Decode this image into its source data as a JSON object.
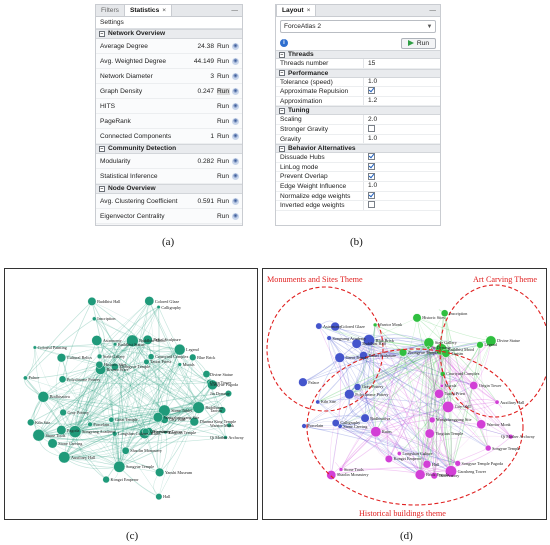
{
  "statistics_panel": {
    "tabs": [
      "Filters",
      "Statistics"
    ],
    "tab_close": "×",
    "minimize": "—",
    "subheader": "Settings",
    "sections": [
      {
        "title": "Network Overview",
        "rows": [
          {
            "label": "Average Degree",
            "value": "24.38",
            "run": "Run"
          },
          {
            "label": "Avg. Weighted Degree",
            "value": "44.149",
            "run": "Run"
          },
          {
            "label": "Network Diameter",
            "value": "3",
            "run": "Run"
          },
          {
            "label": "Graph Density",
            "value": "0.247",
            "run": "Run"
          },
          {
            "label": "HITS",
            "value": "",
            "run": "Run"
          },
          {
            "label": "PageRank",
            "value": "",
            "run": "Run"
          },
          {
            "label": "Connected Components",
            "value": "1",
            "run": "Run"
          }
        ]
      },
      {
        "title": "Community Detection",
        "rows": [
          {
            "label": "Modularity",
            "value": "0.282",
            "run": "Run"
          },
          {
            "label": "Statistical Inference",
            "value": "",
            "run": "Run"
          }
        ]
      },
      {
        "title": "Node Overview",
        "rows": [
          {
            "label": "Avg. Clustering Coefficient",
            "value": "0.591",
            "run": "Run"
          },
          {
            "label": "Eigenvector Centrality",
            "value": "",
            "run": "Run"
          }
        ]
      }
    ]
  },
  "layout_panel": {
    "tab": "Layout",
    "tab_close": "×",
    "minimize": "—",
    "algorithm": "ForceAtlas 2",
    "info_glyph": "i",
    "run_label": "Run",
    "sections": [
      {
        "title": "Threads",
        "rows": [
          {
            "label": "Threads number",
            "value": "15"
          }
        ]
      },
      {
        "title": "Performance",
        "rows": [
          {
            "label": "Tolerance (speed)",
            "value": "1.0"
          },
          {
            "label": "Approximate Repulsion",
            "checkbox": true
          },
          {
            "label": "Approximation",
            "value": "1.2"
          }
        ]
      },
      {
        "title": "Tuning",
        "rows": [
          {
            "label": "Scaling",
            "value": "2.0"
          },
          {
            "label": "Stronger Gravity",
            "checkbox": false
          },
          {
            "label": "Gravity",
            "value": "1.0"
          }
        ]
      },
      {
        "title": "Behavior Alternatives",
        "rows": [
          {
            "label": "Dissuade Hubs",
            "checkbox": true
          },
          {
            "label": "LinLog mode",
            "checkbox": true
          },
          {
            "label": "Prevent Overlap",
            "checkbox": true
          },
          {
            "label": "Edge Weight Influence",
            "value": "1.0"
          },
          {
            "label": "Normalize edge weights",
            "checkbox": true
          },
          {
            "label": "Inverted edge weights",
            "checkbox": false
          }
        ]
      }
    ]
  },
  "captions": {
    "a": "(a)",
    "b": "(b)",
    "c": "(c)",
    "d": "(d)"
  },
  "themes": {
    "monuments": "Monuments and Sites Theme",
    "art": "Art Carving Theme",
    "historical": "Historical buildings theme"
  },
  "colors": {
    "graph_c": "#1f9a7a",
    "blue_cluster": "#4455cc",
    "green_cluster": "#2fbf3f",
    "magenta_cluster": "#d23fd6",
    "theme_red": "#e02020"
  },
  "graph_c_labels": [
    "Qi Mother Archway",
    "Warrior Monk",
    "Dharma King Temple",
    "Stone Tablet",
    "City Wall",
    "Wangzhenggang Site",
    "Yingtian Temple",
    "Ruins",
    "Gaosheng Tower",
    "Yanshi Museum",
    "Observatory",
    "Hall",
    "Songyue Temple",
    "Shaolin Monastery",
    "Kongzi Emperor",
    "Longshan Culture",
    "Great Temple",
    "Auxiliary Hall",
    "Stone Carving",
    "Songyang Academy",
    "Porcelain",
    "Pagoda",
    "Stone Tools",
    "Gray Pottery",
    "Kiln Site",
    "Polychrome Pottery",
    "Bodhisattva",
    "Palace",
    "Cultural Relics",
    "Bronze Ware",
    "Colorful Painting",
    "Astronomy",
    "Zhongyue Temple",
    "Historic Sites",
    "Stele Gallery",
    "Inscription",
    "Buddhist Hall",
    "Buddhist Statue",
    "Buddhist Mood",
    "Relief Sculpture",
    "Colored Glaze",
    "Courtyard Complex",
    "Calligraphy",
    "Taoist Priest",
    "Blue Brick",
    "Legend",
    "Murals",
    "Divine Statue",
    "Orgin Tower",
    "Jin Dynasty",
    "Songyue Pagoda",
    "Buddhism",
    "Taoism"
  ],
  "graph_d_labels": [
    "Qi Mother Archway",
    "Warrior Monk",
    "City Wall",
    "Wangzhenggang Site",
    "Songyue Temple",
    "Songyue Temple Pagoda",
    "Yingtian Temple",
    "Gaosheng Tower",
    "Observatory",
    "Hall",
    "Brick Pagoda",
    "Kongzi Emperor",
    "Longshan Culture",
    "Stone Tools",
    "Ruins",
    "Shaolin Monastery",
    "Stone Carving",
    "Bodhisattva",
    "Calligraphy",
    "Porcelain",
    "Kiln Site",
    "Polychrome Pottery",
    "Gray Pottery",
    "Palace",
    "Great Temple",
    "Songyang Academy",
    "Astronomy",
    "Buddhist Hall",
    "Colored Glaze",
    "Relief Sculpture",
    "Blue Brick",
    "Warrior Monk",
    "Zhongyue Temple",
    "Historic Sites",
    "Stele Gallery",
    "Inscription",
    "Jin Dynasty",
    "Buddhist Mood",
    "Taoism",
    "Legend",
    "Divine Statue",
    "Courtyard Complex",
    "Murals",
    "Taoist Priest",
    "Origin Tower",
    "Auxiliary Hall"
  ]
}
